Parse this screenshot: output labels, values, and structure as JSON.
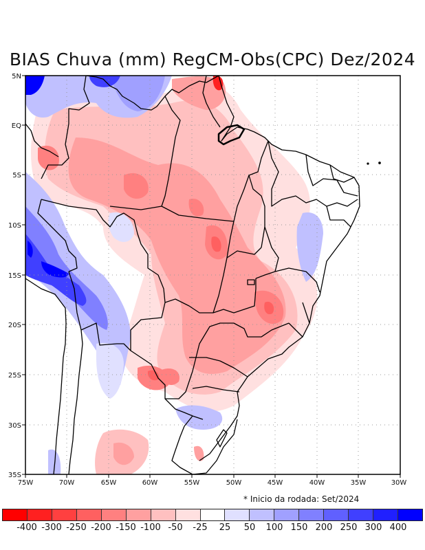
{
  "title": "BIAS Chuva (mm) RegCM-Obs(CPC) Dez/2024",
  "note": "* Inicio da rodada: Set/2024",
  "axes": {
    "x_ticks": [
      "75W",
      "70W",
      "65W",
      "60W",
      "55W",
      "50W",
      "45W",
      "40W",
      "35W",
      "30W"
    ],
    "y_ticks": [
      "5N",
      "EQ",
      "5S",
      "10S",
      "15S",
      "20S",
      "25S",
      "30S",
      "35S"
    ],
    "lon_range": [
      -75,
      -30
    ],
    "lat_range": [
      -35,
      5
    ]
  },
  "colorbar": {
    "labels": [
      "-400",
      "-300",
      "-250",
      "-200",
      "-150",
      "-100",
      "-50",
      "-25",
      "25",
      "50",
      "100",
      "150",
      "200",
      "250",
      "300",
      "400"
    ],
    "colors": [
      "#ff0000",
      "#ff2020",
      "#ff4040",
      "#ff6060",
      "#ff8080",
      "#ffa0a0",
      "#ffc0c0",
      "#ffe0e0",
      "#ffffff",
      "#e0e0ff",
      "#c0c0ff",
      "#a0a0ff",
      "#8080ff",
      "#6060ff",
      "#4040ff",
      "#2020ff",
      "#0000ff"
    ]
  },
  "map_layers": {
    "field_colors": {
      "red1": "#ffe0e0",
      "red2": "#ffc0c0",
      "red3": "#ffa0a0",
      "red4": "#ff8080",
      "red5": "#ff6060",
      "red6": "#ff2020",
      "blue1": "#e0e0ff",
      "blue2": "#c0c0ff",
      "blue3": "#a0a0ff",
      "blue4": "#8080ff",
      "blue5": "#4040ff",
      "blue6": "#0000ff"
    }
  }
}
